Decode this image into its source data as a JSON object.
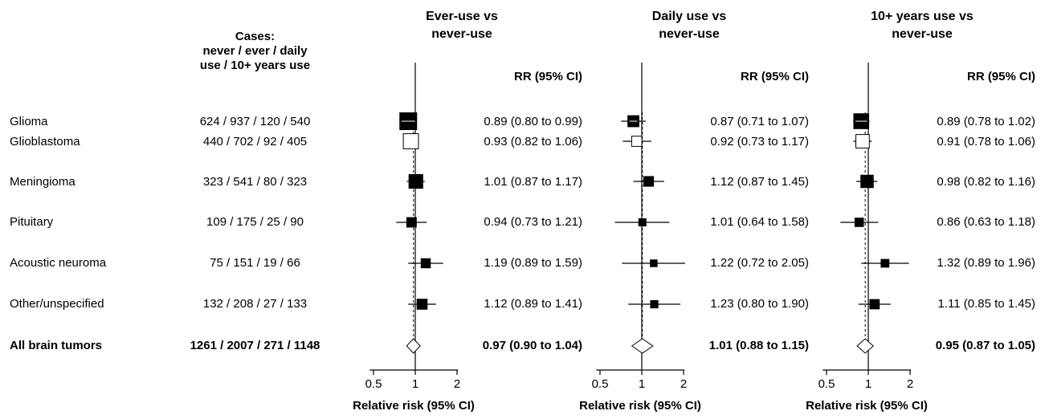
{
  "cases_header": "Cases:\nnever / ever / daily\nuse / 10+ years use",
  "rows": [
    {
      "label": "Glioma",
      "cases": "624 / 937 / 120 / 540",
      "bold": false
    },
    {
      "label": "Glioblastoma",
      "cases": "440 / 702 / 92 / 405",
      "bold": false
    },
    {
      "label": "Meningioma",
      "cases": "323 / 541 / 80 / 323",
      "bold": false
    },
    {
      "label": "Pituitary",
      "cases": "109 / 175 / 25 / 90",
      "bold": false
    },
    {
      "label": "Acoustic neuroma",
      "cases": "75 / 151 / 19 / 66",
      "bold": false
    },
    {
      "label": "Other/unspecified",
      "cases": "132 / 208 / 27 / 133",
      "bold": false
    },
    {
      "label": "All brain tumors",
      "cases": "1261 / 2007 / 271 / 1148",
      "bold": true
    }
  ],
  "panels": [
    {
      "title": "Ever-use vs\nnever-use",
      "rr_header": "RR (95% CI)",
      "xlabel": "Relative risk (95% CI)",
      "ticks": [
        "0.5",
        "1",
        "2"
      ],
      "rr_texts": [
        "0.89 (0.80 to 0.99)",
        "0.93 (0.82 to 1.06)",
        "1.01 (0.87 to 1.17)",
        "0.94 (0.73 to 1.21)",
        "1.19 (0.89 to 1.59)",
        "1.12 (0.89 to 1.41)",
        "0.97 (0.90 to 1.04)"
      ]
    },
    {
      "title": "Daily use vs\nnever-use",
      "rr_header": "RR (95% CI)",
      "xlabel": "Relative risk (95% CI)",
      "ticks": [
        "0.5",
        "1",
        "2"
      ],
      "rr_texts": [
        "0.87 (0.71 to 1.07)",
        "0.92 (0.73 to 1.17)",
        "1.12 (0.87 to 1.45)",
        "1.01 (0.64 to 1.58)",
        "1.22 (0.72 to 2.05)",
        "1.23 (0.80 to 1.90)",
        "1.01 (0.88 to 1.15)"
      ]
    },
    {
      "title": "10+ years use vs\nnever-use",
      "rr_header": "RR (95% CI)",
      "xlabel": "Relative risk (95% CI)",
      "ticks": [
        "0.5",
        "1",
        "2"
      ],
      "rr_texts": [
        "0.89 (0.78 to 1.02)",
        "0.91 (0.78 to 1.06)",
        "0.98 (0.82 to 1.16)",
        "0.86 (0.63 to 1.18)",
        "1.32 (0.89 to 1.96)",
        "1.11 (0.85 to 1.45)",
        "0.95 (0.87 to 1.05)"
      ]
    }
  ],
  "chart_data": {
    "type": "forest",
    "x_scale": "log",
    "xlim": [
      0.4,
      2.2
    ],
    "reference_line": 1,
    "categories": [
      "Glioma",
      "Glioblastoma",
      "Meningioma",
      "Pituitary",
      "Acoustic neuroma",
      "Other/unspecified",
      "All brain tumors"
    ],
    "marker_styles": [
      "filled-square",
      "open-square",
      "filled-square",
      "filled-square",
      "filled-square",
      "filled-square",
      "open-diamond"
    ],
    "series": [
      {
        "name": "Ever-use vs never-use",
        "rr": [
          0.89,
          0.93,
          1.01,
          0.94,
          1.19,
          1.12,
          0.97
        ],
        "lower": [
          0.8,
          0.82,
          0.87,
          0.73,
          0.89,
          0.89,
          0.9
        ],
        "upper": [
          0.99,
          1.06,
          1.17,
          1.21,
          1.59,
          1.41,
          1.04
        ],
        "weight": [
          937,
          702,
          541,
          175,
          151,
          208,
          2007
        ],
        "pooled_rr": 0.97
      },
      {
        "name": "Daily use vs never-use",
        "rr": [
          0.87,
          0.92,
          1.12,
          1.01,
          1.22,
          1.23,
          1.01
        ],
        "lower": [
          0.71,
          0.73,
          0.87,
          0.64,
          0.72,
          0.8,
          0.88
        ],
        "upper": [
          1.07,
          1.17,
          1.45,
          1.58,
          2.05,
          1.9,
          1.15
        ],
        "weight": [
          120,
          92,
          80,
          25,
          19,
          27,
          271
        ],
        "pooled_rr": 1.01
      },
      {
        "name": "10+ years use vs never-use",
        "rr": [
          0.89,
          0.91,
          0.98,
          0.86,
          1.32,
          1.11,
          0.95
        ],
        "lower": [
          0.78,
          0.78,
          0.82,
          0.63,
          0.89,
          0.85,
          0.87
        ],
        "upper": [
          1.02,
          1.06,
          1.16,
          1.18,
          1.96,
          1.45,
          1.05
        ],
        "weight": [
          540,
          405,
          323,
          90,
          66,
          133,
          1148
        ],
        "pooled_rr": 0.95
      }
    ]
  }
}
